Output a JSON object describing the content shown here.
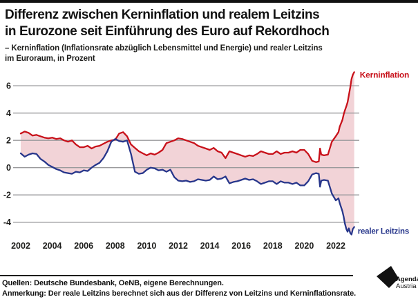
{
  "header": {
    "title_line1": "Differenz zwischen Kerninflation und realem Leitzins",
    "title_line2": "in Eurozone seit Einführung des Euro auf Rekordhoch",
    "subtitle_line1": "– Kerninflation (Inflationsrate abzüglich Lebensmittel und Energie) und realer Leitzins",
    "subtitle_line2": "im Euroraum, in Prozent"
  },
  "chart_data": {
    "type": "line",
    "title": "Differenz zwischen Kerninflation und realem Leitzins in Eurozone seit Einführung des Euro auf Rekordhoch",
    "unit": "Prozent",
    "grid": true,
    "legend_position": "line-end-labels",
    "band_fill": "#f2d3d7",
    "gridline_color": "#9a9a9c",
    "xlim": [
      2002,
      2023.2
    ],
    "ylim": [
      -5.3,
      7.3
    ],
    "yticks": [
      6,
      4,
      2,
      0,
      -2,
      -4
    ],
    "xticks": [
      2002,
      2004,
      2006,
      2008,
      2010,
      2012,
      2014,
      2016,
      2018,
      2020,
      2022
    ],
    "x": [
      2002,
      2002.25,
      2002.5,
      2002.75,
      2003,
      2003.25,
      2003.5,
      2003.75,
      2004,
      2004.25,
      2004.5,
      2004.75,
      2005,
      2005.25,
      2005.5,
      2005.75,
      2006,
      2006.25,
      2006.5,
      2006.75,
      2007,
      2007.25,
      2007.5,
      2007.75,
      2008,
      2008.25,
      2008.5,
      2008.75,
      2009,
      2009.25,
      2009.5,
      2009.75,
      2010,
      2010.25,
      2010.5,
      2010.75,
      2011,
      2011.25,
      2011.5,
      2011.75,
      2012,
      2012.25,
      2012.5,
      2012.75,
      2013,
      2013.25,
      2013.5,
      2013.75,
      2014,
      2014.25,
      2014.5,
      2014.75,
      2015,
      2015.25,
      2015.5,
      2015.75,
      2016,
      2016.25,
      2016.5,
      2016.75,
      2017,
      2017.25,
      2017.5,
      2017.75,
      2018,
      2018.25,
      2018.5,
      2018.75,
      2019,
      2019.25,
      2019.5,
      2019.75,
      2020,
      2020.25,
      2020.5,
      2020.75,
      2020.92,
      2021,
      2021.08,
      2021.25,
      2021.5,
      2021.75,
      2022,
      2022.17,
      2022.25,
      2022.42,
      2022.5,
      2022.58,
      2022.67,
      2022.75,
      2022.83,
      2022.92,
      2023,
      2023.08,
      2023.17
    ],
    "series": [
      {
        "name": "Kerninflation",
        "color": "#c8111a",
        "values": [
          2.5,
          2.65,
          2.55,
          2.35,
          2.4,
          2.3,
          2.2,
          2.15,
          2.2,
          2.1,
          2.15,
          2.0,
          1.9,
          2.0,
          1.7,
          1.5,
          1.5,
          1.6,
          1.4,
          1.55,
          1.6,
          1.75,
          1.9,
          2.0,
          2.05,
          2.5,
          2.6,
          2.3,
          1.7,
          1.45,
          1.2,
          1.05,
          0.9,
          1.05,
          0.95,
          1.1,
          1.3,
          1.8,
          1.9,
          2.0,
          2.15,
          2.1,
          2.0,
          1.9,
          1.8,
          1.6,
          1.5,
          1.4,
          1.3,
          1.45,
          1.2,
          1.1,
          0.7,
          1.2,
          1.1,
          1.0,
          0.9,
          0.8,
          0.9,
          0.85,
          1.0,
          1.2,
          1.1,
          1.0,
          1.0,
          1.2,
          1.0,
          1.1,
          1.1,
          1.2,
          1.1,
          1.3,
          1.3,
          1.0,
          0.5,
          0.4,
          0.45,
          1.4,
          0.95,
          0.9,
          0.95,
          1.9,
          2.3,
          2.6,
          3.0,
          3.5,
          3.9,
          4.2,
          4.5,
          4.8,
          5.3,
          5.9,
          6.5,
          6.8,
          7.0
        ]
      },
      {
        "name": "realer Leitzins",
        "color": "#27368b",
        "values": [
          1.05,
          0.8,
          0.95,
          1.05,
          1.0,
          0.65,
          0.45,
          0.2,
          0.05,
          -0.1,
          -0.2,
          -0.35,
          -0.4,
          -0.45,
          -0.3,
          -0.35,
          -0.2,
          -0.25,
          0.0,
          0.2,
          0.35,
          0.7,
          1.2,
          1.9,
          2.1,
          1.95,
          1.9,
          2.0,
          1.0,
          -0.3,
          -0.45,
          -0.4,
          -0.15,
          0.0,
          -0.05,
          -0.2,
          -0.15,
          -0.3,
          -0.15,
          -0.7,
          -0.95,
          -1.0,
          -0.95,
          -1.05,
          -1.0,
          -0.85,
          -0.9,
          -0.95,
          -0.9,
          -0.65,
          -0.85,
          -0.8,
          -0.65,
          -1.15,
          -1.05,
          -1.0,
          -0.9,
          -0.8,
          -0.9,
          -0.85,
          -1.0,
          -1.2,
          -1.1,
          -1.0,
          -1.0,
          -1.2,
          -1.0,
          -1.1,
          -1.1,
          -1.2,
          -1.1,
          -1.3,
          -1.3,
          -1.0,
          -0.5,
          -0.4,
          -0.45,
          -1.4,
          -0.95,
          -0.9,
          -0.95,
          -1.9,
          -2.4,
          -2.25,
          -2.6,
          -3.2,
          -3.6,
          -4.1,
          -4.5,
          -4.7,
          -4.45,
          -4.8,
          -4.9,
          -4.5,
          -4.35
        ]
      }
    ]
  },
  "footer": {
    "sources": "Quellen: Deutsche Bundesbank, OeNB, eigene Berechnungen.",
    "note": "Anmerkung: Der reale Leitzins berechnet sich aus der Differenz von Leitzins und Kerninflationsrate.",
    "logo_line1": "Agenda",
    "logo_line2": "Austria"
  }
}
